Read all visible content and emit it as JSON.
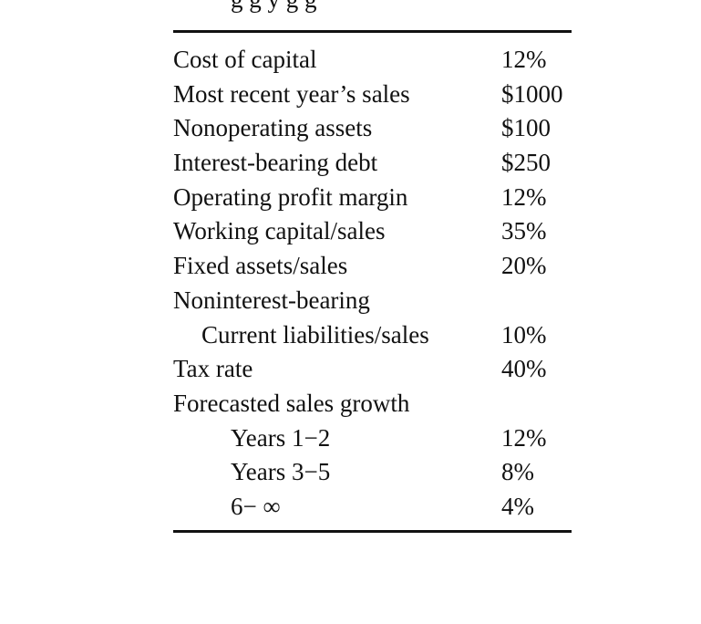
{
  "header_fragment": "g  g    y    g  g",
  "table": {
    "rows": [
      {
        "label": "Cost of capital",
        "value": "12%",
        "indent": 0
      },
      {
        "label": "Most recent year’s sales",
        "value": "$1000",
        "indent": 0
      },
      {
        "label": "Nonoperating assets",
        "value": "$100",
        "indent": 0
      },
      {
        "label": "Interest-bearing debt",
        "value": "$250",
        "indent": 0
      },
      {
        "label": "Operating profit margin",
        "value": "12%",
        "indent": 0
      },
      {
        "label": "Working capital/sales",
        "value": "35%",
        "indent": 0
      },
      {
        "label": "Fixed assets/sales",
        "value": "20%",
        "indent": 0
      },
      {
        "label": "Noninterest-bearing",
        "value": "",
        "indent": 0
      },
      {
        "label": "Current liabilities/sales",
        "value": "10%",
        "indent": 1
      },
      {
        "label": "Tax rate",
        "value": "40%",
        "indent": 0
      },
      {
        "label": "Forecasted sales growth",
        "value": "",
        "indent": 0
      },
      {
        "label": "Years 1−2",
        "value": "12%",
        "indent": 2
      },
      {
        "label": "Years 3−5",
        "value": "8%",
        "indent": 2
      },
      {
        "label": "6− ∞",
        "value": "4%",
        "indent": 2
      }
    ]
  }
}
